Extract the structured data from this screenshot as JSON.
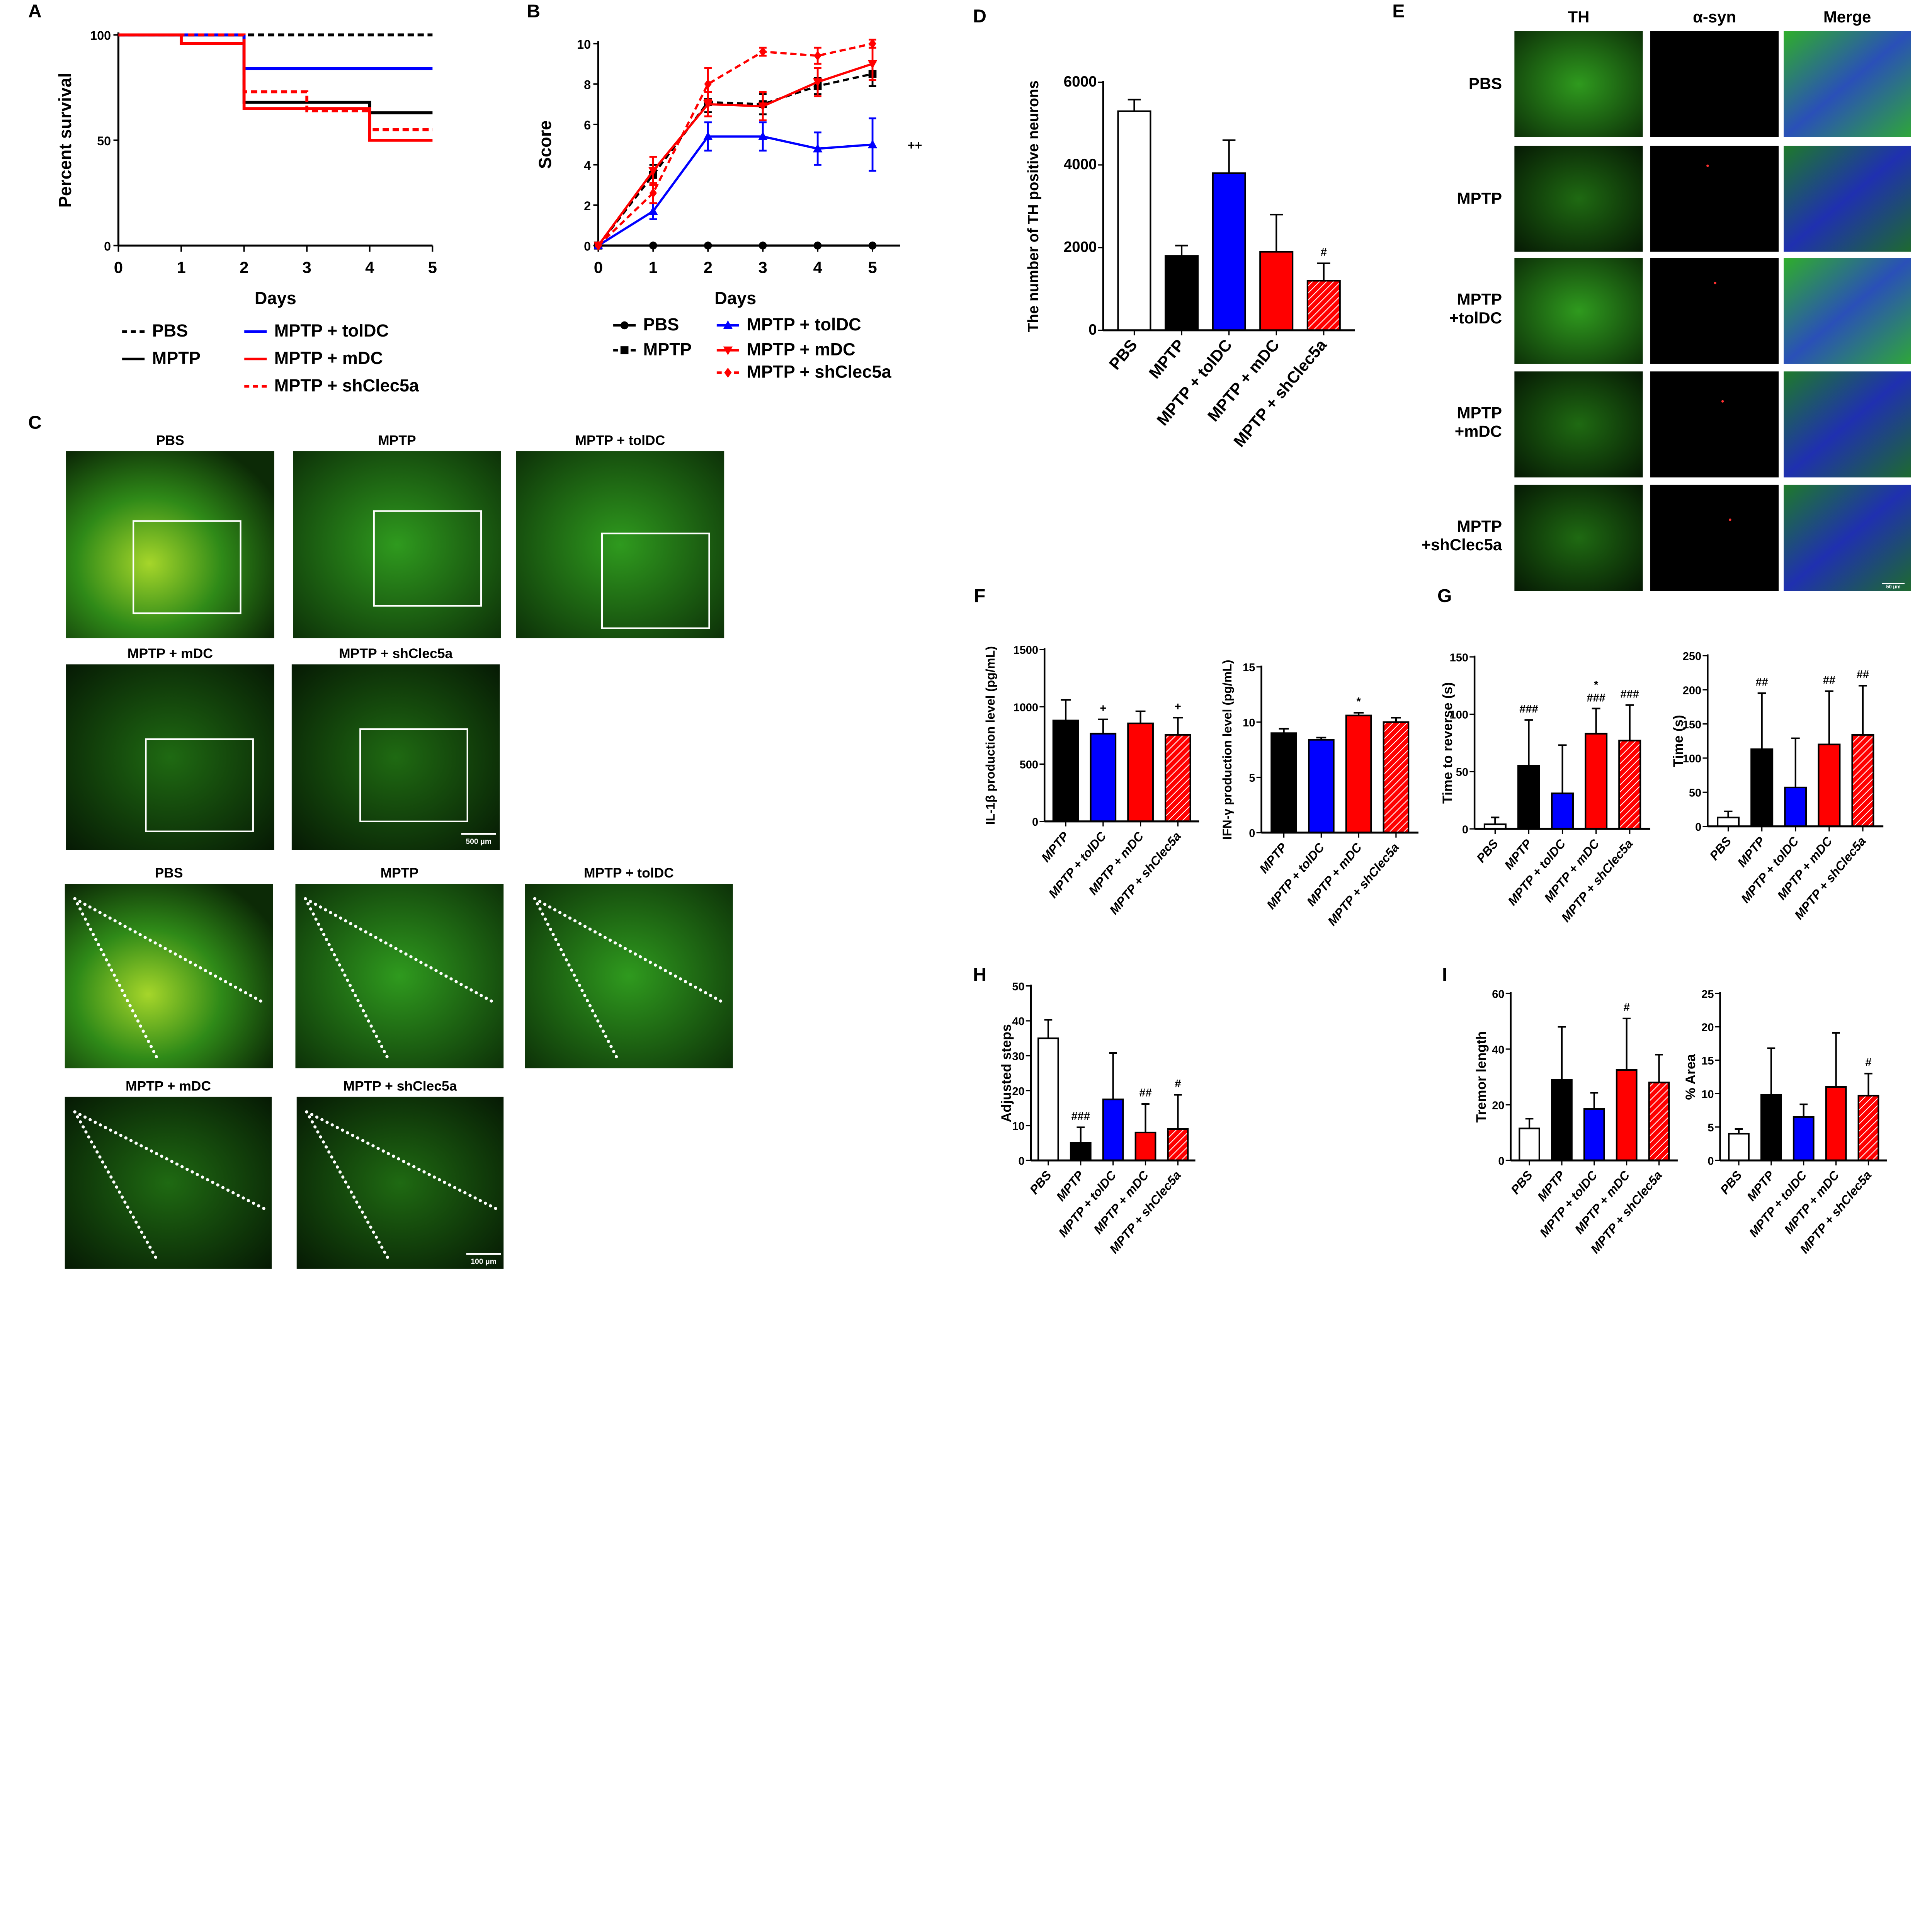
{
  "panel_letters": [
    "A",
    "B",
    "C",
    "D",
    "E",
    "F",
    "G",
    "H",
    "I"
  ],
  "colors": {
    "PBS": "#ffffff",
    "MPTP": "#000000",
    "toIDC": "#0000ff",
    "mDC": "#ff0000",
    "shClec5a": "#ff0000",
    "micro_green": "#3fbf2a",
    "micro_blue": "#2a3bd0"
  },
  "panel_c": {
    "row1_titles": [
      "PBS",
      "MPTP",
      "MPTP + tolDC"
    ],
    "row2_titles": [
      "MPTP + mDC",
      "MPTP + shClec5a"
    ],
    "row3_titles": [
      "PBS",
      "MPTP",
      "MPTP + tolDC"
    ],
    "row4_titles": [
      "MPTP + mDC",
      "MPTP + shClec5a"
    ],
    "scale_bar_low": "500 μm",
    "scale_bar_high": "100 μm"
  },
  "panel_e": {
    "columns": [
      "TH",
      "α-syn",
      "Merge"
    ],
    "rows": [
      "PBS",
      "MPTP",
      "MPTP\n+tolDC",
      "MPTP\n+mDC",
      "MPTP\n+shClec5a"
    ],
    "scale_bar": "50 μm"
  },
  "chart_data": [
    {
      "id": "A",
      "type": "line",
      "step": true,
      "xlabel": "Days",
      "ylabel": "Percent survival",
      "xlim": [
        0,
        5
      ],
      "ylim": [
        0,
        100
      ],
      "xticks": [
        0,
        1,
        2,
        3,
        4,
        5
      ],
      "yticks": [
        0,
        50,
        100
      ],
      "legend": "bottom",
      "series": [
        {
          "name": "PBS",
          "color": "#000000",
          "dash": true,
          "x": [
            0,
            5
          ],
          "y": [
            100,
            100
          ]
        },
        {
          "name": "MPTP",
          "color": "#000000",
          "x": [
            0,
            2,
            4,
            5
          ],
          "y": [
            100,
            68,
            63,
            63
          ]
        },
        {
          "name": "MPTP + tolDC",
          "color": "#0000ff",
          "x": [
            0,
            2,
            5
          ],
          "y": [
            100,
            84,
            84
          ]
        },
        {
          "name": "MPTP + mDC",
          "color": "#ff0000",
          "x": [
            0,
            1,
            2,
            4,
            5
          ],
          "y": [
            100,
            96,
            65,
            50,
            50
          ]
        },
        {
          "name": "MPTP + shClec5a",
          "color": "#ff0000",
          "dash": true,
          "x": [
            0,
            2,
            3,
            4,
            5
          ],
          "y": [
            100,
            73,
            64,
            55,
            55
          ]
        }
      ]
    },
    {
      "id": "B",
      "type": "line",
      "xlabel": "Days",
      "ylabel": "Score",
      "xlim": [
        0,
        5
      ],
      "ylim": [
        0,
        10
      ],
      "xticks": [
        0,
        1,
        2,
        3,
        4,
        5
      ],
      "yticks": [
        0,
        2,
        4,
        6,
        8,
        10
      ],
      "legend": "bottom",
      "annotation": "++",
      "x": [
        0,
        1,
        2,
        3,
        4,
        5
      ],
      "series": [
        {
          "name": "PBS",
          "color": "#000000",
          "marker": "circle",
          "y": [
            0,
            0,
            0,
            0,
            0,
            0
          ],
          "err": [
            0,
            0,
            0,
            0,
            0,
            0
          ]
        },
        {
          "name": "MPTP",
          "color": "#000000",
          "dash": true,
          "marker": "square",
          "y": [
            0,
            3.5,
            7.1,
            7.0,
            7.9,
            8.5
          ],
          "err": [
            0,
            0.5,
            0.5,
            0.5,
            0.4,
            0.6
          ]
        },
        {
          "name": "MPTP + tolDC",
          "color": "#0000ff",
          "marker": "triangle",
          "y": [
            0,
            1.7,
            5.4,
            5.4,
            4.8,
            5.0
          ],
          "err": [
            0,
            0.4,
            0.7,
            0.7,
            0.8,
            1.3
          ]
        },
        {
          "name": "MPTP + mDC",
          "color": "#ff0000",
          "marker": "triangle-down",
          "y": [
            0,
            3.7,
            7.0,
            6.9,
            8.1,
            9.0
          ],
          "err": [
            0,
            0.7,
            0.6,
            0.7,
            0.7,
            0.8
          ]
        },
        {
          "name": "MPTP + shClec5a",
          "color": "#ff0000",
          "dash": true,
          "marker": "diamond",
          "y": [
            0,
            2.6,
            8.0,
            9.6,
            9.4,
            10.0
          ],
          "err": [
            0,
            0.5,
            0.8,
            0.2,
            0.4,
            0.2
          ]
        }
      ]
    },
    {
      "id": "D",
      "type": "bar",
      "ylabel": "The number of TH positive neurons",
      "ylim": [
        0,
        6000
      ],
      "yticks": [
        0,
        2000,
        4000,
        6000
      ],
      "categories": [
        "PBS",
        "MPTP",
        "MPTP + tolDC",
        "MPTP + mDC",
        "MPTP + shClec5a"
      ],
      "values": [
        5300,
        1800,
        3800,
        1900,
        1200
      ],
      "err": [
        280,
        250,
        800,
        900,
        420
      ],
      "annotations": [
        "",
        "",
        "",
        "",
        "#"
      ]
    },
    {
      "id": "F1",
      "type": "bar",
      "ylabel": "IL-1β production level (pg/mL)",
      "ylim": [
        0,
        1500
      ],
      "yticks": [
        0,
        500,
        1000,
        1500
      ],
      "categories": [
        "MPTP",
        "MPTP + tolDC",
        "MPTP + mDC",
        "MPTP + shClec5a"
      ],
      "values": [
        880,
        765,
        855,
        755
      ],
      "err": [
        180,
        125,
        105,
        150
      ],
      "annotations": [
        "",
        "+",
        "",
        "+"
      ]
    },
    {
      "id": "F2",
      "type": "bar",
      "ylabel": "IFN-γ production level (pg/mL)",
      "ylim": [
        0,
        15
      ],
      "yticks": [
        0,
        5,
        10,
        15
      ],
      "categories": [
        "MPTP",
        "MPTP + tolDC",
        "MPTP + mDC",
        "MPTP + shClec5a"
      ],
      "values": [
        9.0,
        8.4,
        10.6,
        10.0
      ],
      "err": [
        0.4,
        0.2,
        0.25,
        0.4
      ],
      "annotations": [
        "",
        "",
        "*",
        ""
      ]
    },
    {
      "id": "G1",
      "type": "bar",
      "ylabel": "Time to reverse (s)",
      "ylim": [
        0,
        150
      ],
      "yticks": [
        0,
        50,
        100,
        150
      ],
      "categories": [
        "PBS",
        "MPTP",
        "MPTP + tolDC",
        "MPTP + mDC",
        "MPTP + shClec5a"
      ],
      "values": [
        4,
        55,
        31,
        83,
        77
      ],
      "err": [
        6,
        40,
        42,
        22,
        31
      ],
      "annotations": [
        "",
        "###",
        "",
        "*\n###",
        "###"
      ]
    },
    {
      "id": "G2",
      "type": "bar",
      "ylabel": "Time (s)",
      "ylim": [
        0,
        250
      ],
      "yticks": [
        0,
        50,
        100,
        150,
        200,
        250
      ],
      "categories": [
        "PBS",
        "MPTP",
        "MPTP + tolDC",
        "MPTP + mDC",
        "MPTP + shClec5a"
      ],
      "values": [
        13,
        113,
        57,
        120,
        134
      ],
      "err": [
        9,
        82,
        72,
        78,
        72
      ],
      "annotations": [
        "",
        "##",
        "",
        "##",
        "##"
      ]
    },
    {
      "id": "H",
      "type": "bar",
      "ylabel": "Adjusted steps",
      "ylim": [
        0,
        50
      ],
      "yticks": [
        0,
        10,
        20,
        30,
        40,
        50
      ],
      "categories": [
        "PBS",
        "MPTP",
        "MPTP + tolDC",
        "MPTP + mDC",
        "MPTP + shClec5a"
      ],
      "values": [
        35,
        5,
        17.5,
        8,
        9
      ],
      "err": [
        5.3,
        4.5,
        13.3,
        8.2,
        9.8
      ],
      "annotations": [
        "",
        "###",
        "",
        "##",
        "#"
      ]
    },
    {
      "id": "I1",
      "type": "bar",
      "ylabel": "Tremor length",
      "ylim": [
        0,
        60
      ],
      "yticks": [
        0,
        20,
        40,
        60
      ],
      "categories": [
        "PBS",
        "MPTP",
        "MPTP + tolDC",
        "MPTP + mDC",
        "MPTP + shClec5a"
      ],
      "values": [
        11.5,
        29,
        18.5,
        32.5,
        28
      ],
      "err": [
        3.5,
        19,
        5.8,
        18.5,
        10
      ],
      "annotations": [
        "",
        "",
        "",
        "#",
        ""
      ]
    },
    {
      "id": "I2",
      "type": "bar",
      "ylabel": "% Area",
      "ylim": [
        0,
        25
      ],
      "yticks": [
        0,
        5,
        10,
        15,
        20,
        25
      ],
      "categories": [
        "PBS",
        "MPTP",
        "MPTP + tolDC",
        "MPTP + mDC",
        "MPTP + shClec5a"
      ],
      "values": [
        4,
        9.8,
        6.5,
        11,
        9.7
      ],
      "err": [
        0.7,
        7,
        1.9,
        8.1,
        3.3
      ],
      "annotations": [
        "",
        "",
        "",
        "",
        "#"
      ]
    }
  ]
}
